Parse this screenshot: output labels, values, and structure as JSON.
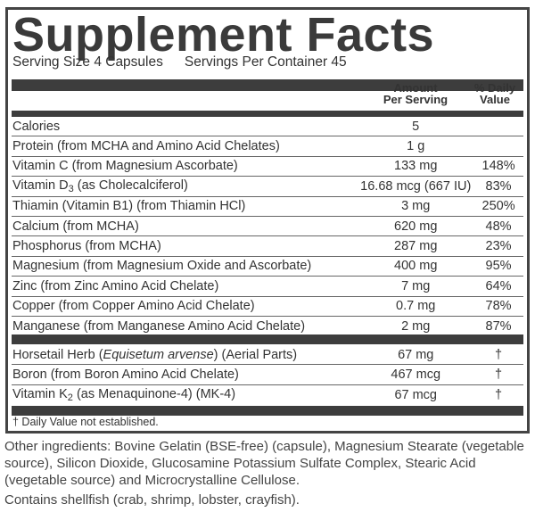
{
  "title": "Supplement Facts",
  "serving_size": "Serving Size 4 Capsules",
  "servings_per_container": "Servings Per Container 45",
  "header": {
    "amount_line1": "Amount",
    "amount_line2": "Per Serving",
    "dv_line1": "% Daily",
    "dv_line2": "Value"
  },
  "nutrients": [
    {
      "name": [
        {
          "t": "Calories"
        }
      ],
      "amount": "5",
      "dv": ""
    },
    {
      "name": [
        {
          "t": "Protein (from MCHA and Amino Acid Chelates)"
        }
      ],
      "amount": "1 g",
      "dv": ""
    },
    {
      "name": [
        {
          "t": "Vitamin C (from Magnesium Ascorbate)"
        }
      ],
      "amount": "133 mg",
      "dv": "148%"
    },
    {
      "name": [
        {
          "t": "Vitamin D"
        },
        {
          "t": "3",
          "s": "sub"
        },
        {
          "t": " (as Cholecalciferol)"
        }
      ],
      "amount": "16.68 mcg (667 IU)",
      "dv": "83%"
    },
    {
      "name": [
        {
          "t": "Thiamin (Vitamin B1) (from Thiamin HCl)"
        }
      ],
      "amount": "3 mg",
      "dv": "250%"
    },
    {
      "name": [
        {
          "t": "Calcium (from MCHA)"
        }
      ],
      "amount": "620 mg",
      "dv": "48%"
    },
    {
      "name": [
        {
          "t": "Phosphorus (from MCHA)"
        }
      ],
      "amount": "287 mg",
      "dv": "23%"
    },
    {
      "name": [
        {
          "t": "Magnesium (from Magnesium Oxide and Ascorbate)"
        }
      ],
      "amount": "400 mg",
      "dv": "95%"
    },
    {
      "name": [
        {
          "t": "Zinc (from Zinc Amino Acid Chelate)"
        }
      ],
      "amount": "7 mg",
      "dv": "64%"
    },
    {
      "name": [
        {
          "t": "Copper (from Copper Amino Acid Chelate)"
        }
      ],
      "amount": "0.7 mg",
      "dv": "78%"
    },
    {
      "name": [
        {
          "t": "Manganese (from Manganese Amino Acid Chelate)"
        }
      ],
      "amount": "2 mg",
      "dv": "87%"
    }
  ],
  "other_nutrients": [
    {
      "name": [
        {
          "t": "Horsetail Herb ("
        },
        {
          "t": "Equisetum arvense",
          "s": "i"
        },
        {
          "t": ") (Aerial Parts)"
        }
      ],
      "amount": "67 mg",
      "dv": "†"
    },
    {
      "name": [
        {
          "t": "Boron (from Boron Amino Acid Chelate)"
        }
      ],
      "amount": "467 mcg",
      "dv": "†"
    },
    {
      "name": [
        {
          "t": "Vitamin K"
        },
        {
          "t": "2",
          "s": "sub"
        },
        {
          "t": " (as Menaquinone-4) (MK-4)"
        }
      ],
      "amount": "67 mcg",
      "dv": "†"
    }
  ],
  "footnote": "† Daily Value not established.",
  "other_ingredients": "Other ingredients: Bovine Gelatin (BSE-free) (capsule), Magnesium Stearate (vegetable source), Silicon Dioxide, Glucosamine Potassium Sulfate Complex, Stearic Acid (vegetable source) and Microcrystalline Cellulose.",
  "allergen": "Contains shellfish (crab, shrimp, lobster, crayfish)."
}
